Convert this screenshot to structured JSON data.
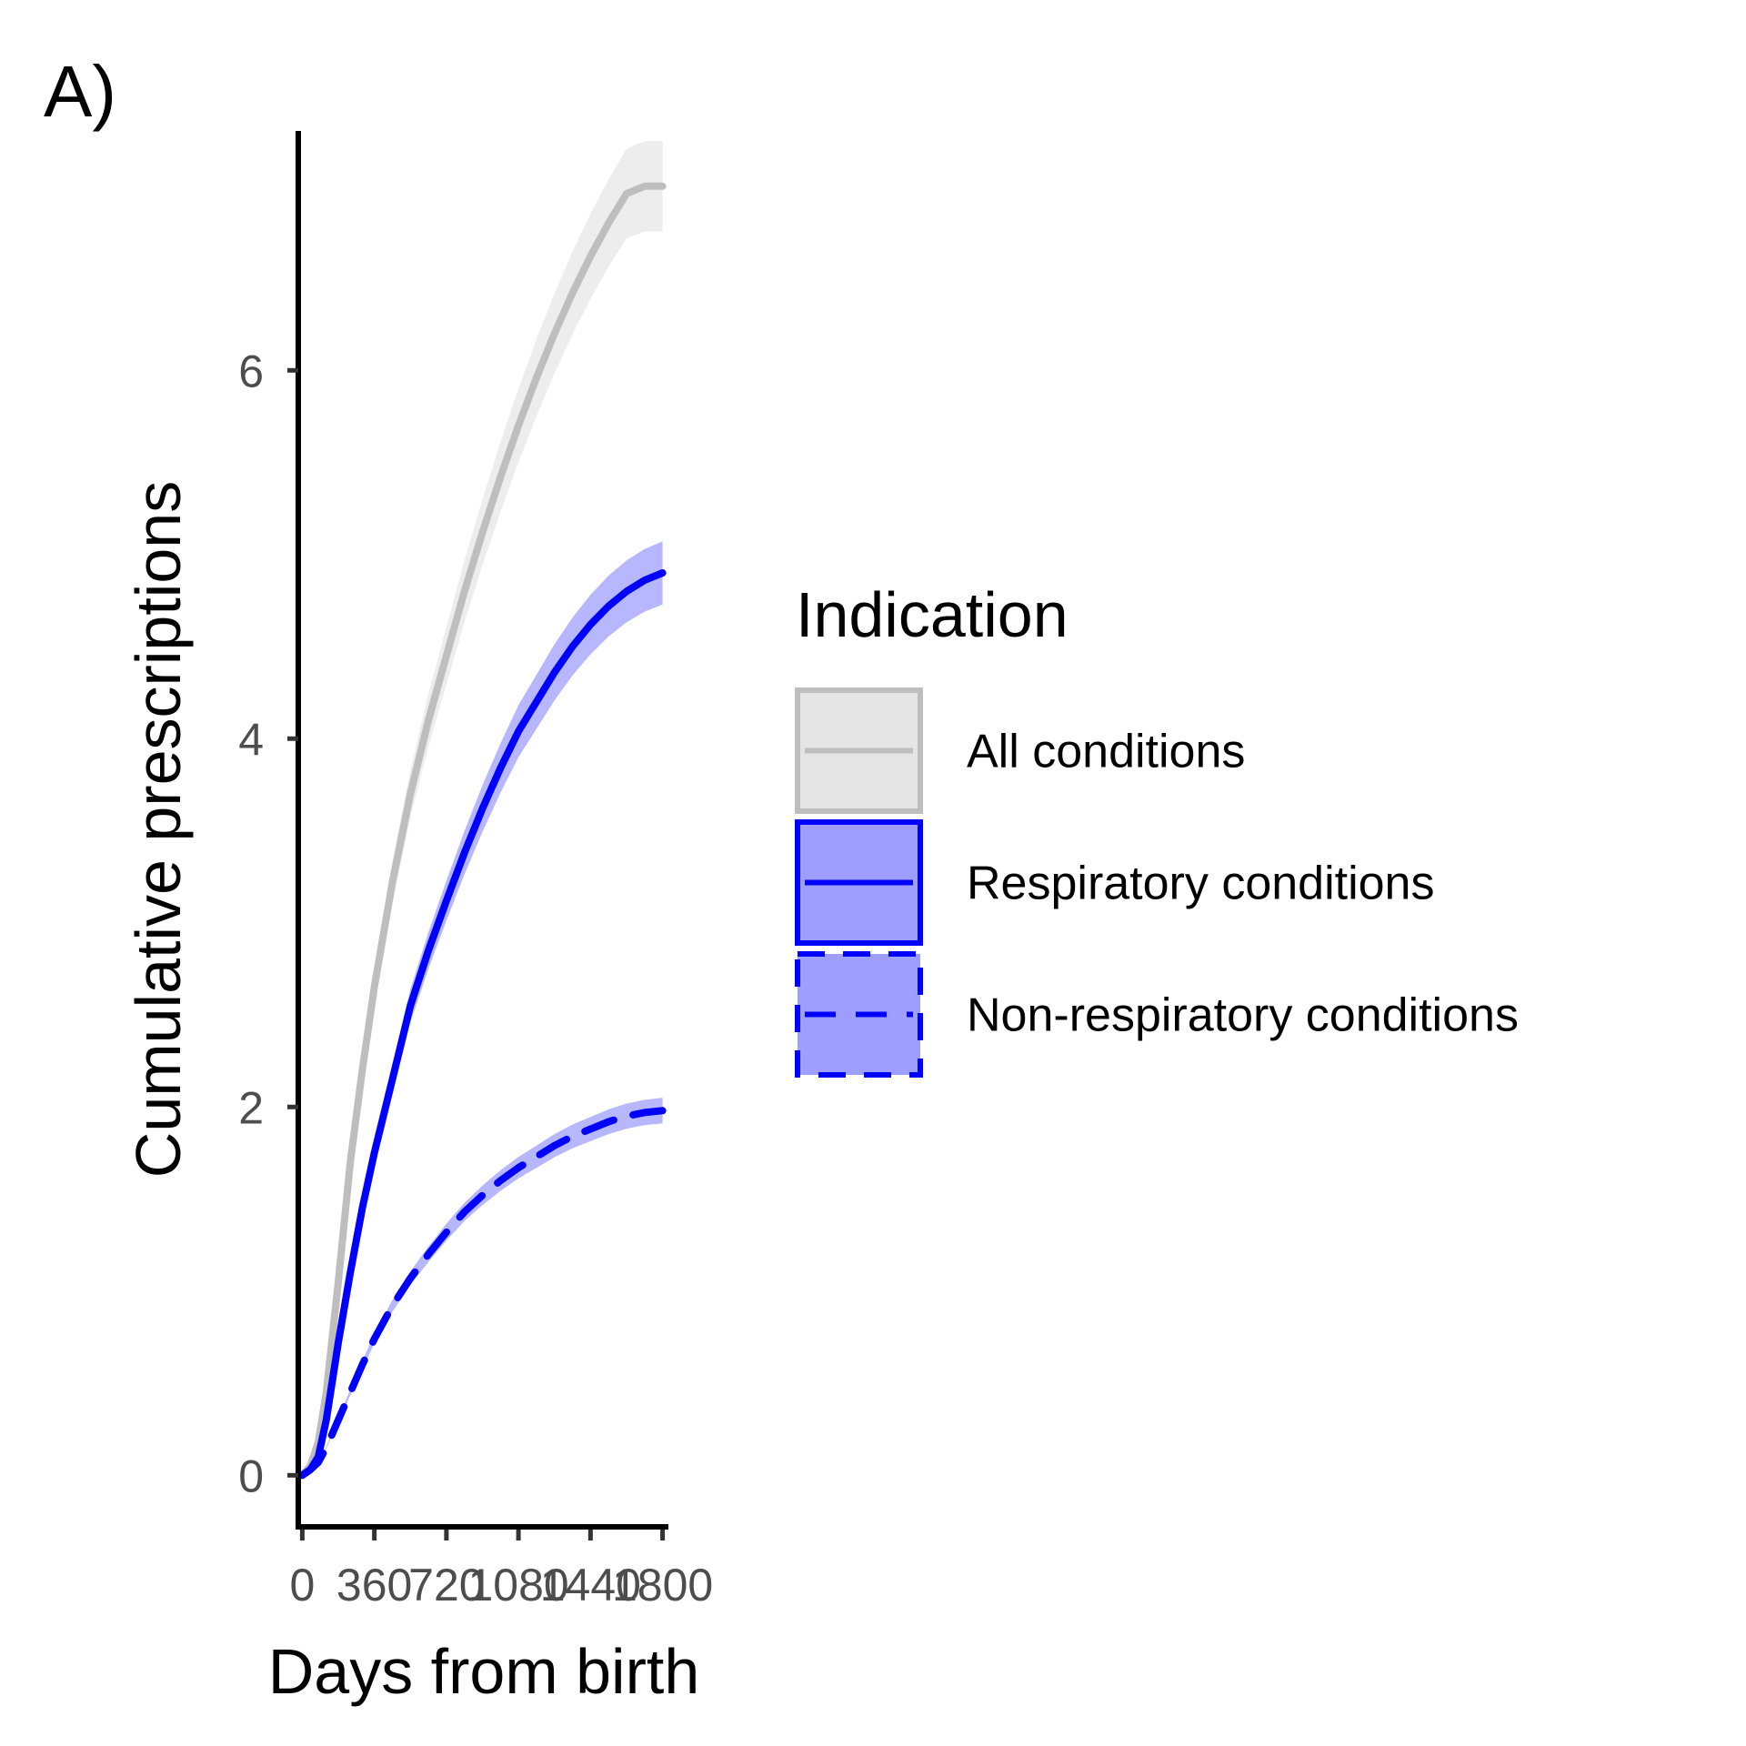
{
  "panel_label": "A)",
  "chart_data": {
    "type": "line",
    "title": "",
    "xlabel": "Days from birth",
    "ylabel": "Cumulative prescriptions",
    "xlim": [
      -20,
      1820
    ],
    "ylim": [
      -0.28,
      7.3
    ],
    "x_ticks": [
      0,
      360,
      720,
      1080,
      1440,
      1800
    ],
    "x_tick_labels": [
      "0",
      "360",
      "720",
      "1080",
      "1440",
      "1800"
    ],
    "y_ticks": [
      0,
      2,
      4,
      6
    ],
    "y_tick_labels": [
      "0",
      "2",
      "4",
      "6"
    ],
    "grid": false,
    "legend": {
      "title": "Indication",
      "position": "right"
    },
    "series": [
      {
        "name": "All conditions",
        "color": "#bebebe",
        "fill": "#e5e5e5",
        "dash": "solid",
        "x": [
          0,
          40,
          80,
          120,
          180,
          240,
          300,
          360,
          450,
          540,
          630,
          720,
          810,
          900,
          990,
          1080,
          1170,
          1260,
          1350,
          1440,
          1530,
          1620,
          1710,
          1800
        ],
        "y": [
          0,
          0.05,
          0.18,
          0.45,
          1.05,
          1.7,
          2.2,
          2.65,
          3.22,
          3.7,
          4.1,
          4.45,
          4.8,
          5.12,
          5.42,
          5.7,
          5.96,
          6.2,
          6.42,
          6.62,
          6.8,
          6.96,
          7.0,
          7.0
        ]
      },
      {
        "name": "Respiratory conditions",
        "color": "#0000ff",
        "fill": "#9999ff",
        "dash": "solid",
        "x": [
          0,
          40,
          80,
          120,
          180,
          240,
          300,
          360,
          450,
          540,
          630,
          720,
          810,
          900,
          990,
          1080,
          1170,
          1260,
          1350,
          1440,
          1530,
          1620,
          1710,
          1800
        ],
        "y": [
          0,
          0.03,
          0.1,
          0.3,
          0.72,
          1.1,
          1.45,
          1.75,
          2.15,
          2.55,
          2.85,
          3.12,
          3.38,
          3.62,
          3.84,
          4.04,
          4.2,
          4.36,
          4.5,
          4.62,
          4.72,
          4.8,
          4.86,
          4.9
        ]
      },
      {
        "name": "Non-respiratory conditions",
        "color": "#0000ff",
        "fill": "#9999ff",
        "dash": "dashed",
        "x": [
          0,
          40,
          80,
          120,
          180,
          240,
          300,
          360,
          450,
          540,
          630,
          720,
          810,
          900,
          990,
          1080,
          1170,
          1260,
          1350,
          1440,
          1530,
          1620,
          1710,
          1800
        ],
        "y": [
          0,
          0.03,
          0.07,
          0.15,
          0.3,
          0.45,
          0.6,
          0.74,
          0.92,
          1.07,
          1.2,
          1.32,
          1.43,
          1.52,
          1.6,
          1.67,
          1.73,
          1.79,
          1.84,
          1.88,
          1.92,
          1.95,
          1.97,
          1.98
        ]
      }
    ]
  }
}
